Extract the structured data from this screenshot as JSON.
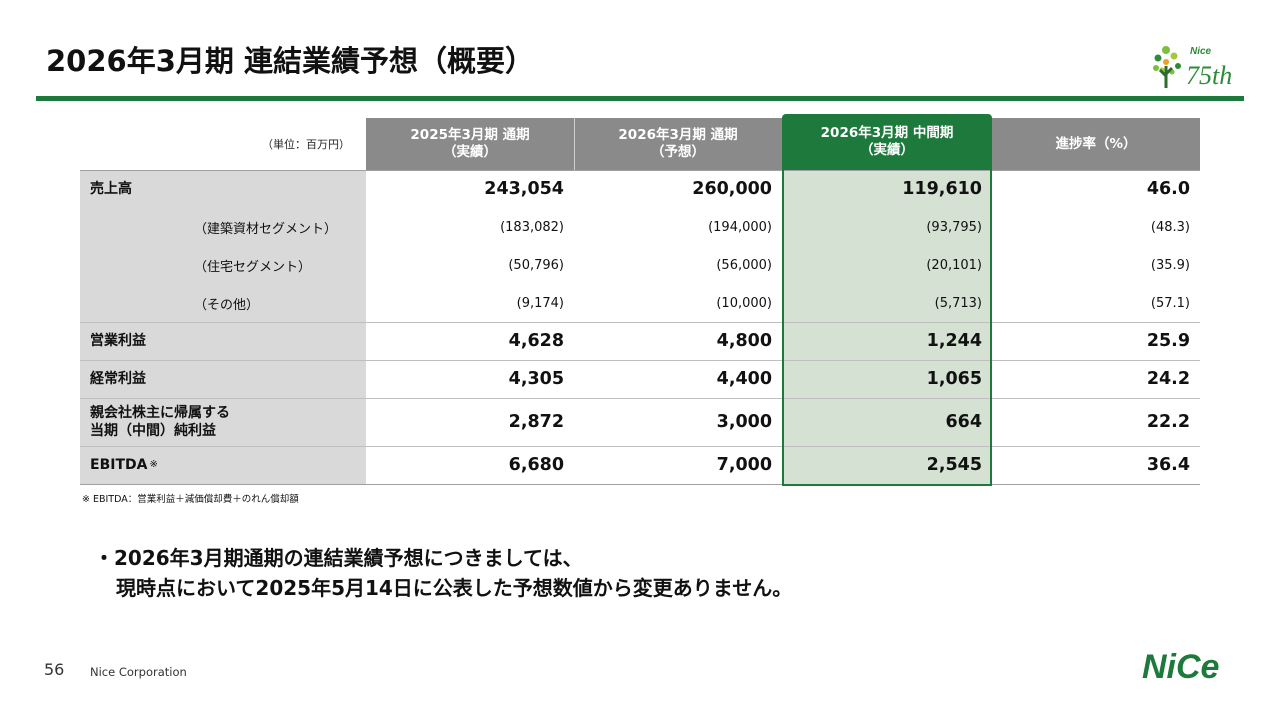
{
  "title": "2026年3月期 連結業績予想（概要）",
  "logo75": {
    "brand": "Nice",
    "anniv": "75th"
  },
  "table": {
    "unit": "（単位：百万円）",
    "headers": [
      {
        "l1": "2025年3月期 通期",
        "l2": "（実績）"
      },
      {
        "l1": "2026年3月期 通期",
        "l2": "（予想）"
      },
      {
        "l1": "2026年3月期 中間期",
        "l2": "（実績）"
      },
      {
        "l1": "進捗率（%）",
        "l2": ""
      }
    ],
    "rows": [
      {
        "label": "売上高",
        "label2": "",
        "v": [
          "243,054",
          "260,000",
          "119,610",
          "46.0"
        ]
      },
      {
        "label": "（建築資材セグメント）",
        "label2": "",
        "v": [
          "(183,082)",
          "(194,000)",
          "(93,795)",
          "(48.3)"
        ]
      },
      {
        "label": "（住宅セグメント）",
        "label2": "",
        "v": [
          "(50,796)",
          "(56,000)",
          "(20,101)",
          "(35.9)"
        ]
      },
      {
        "label": "（その他）",
        "label2": "",
        "v": [
          "(9,174)",
          "(10,000)",
          "(5,713)",
          "(57.1)"
        ]
      },
      {
        "label": "営業利益",
        "label2": "",
        "v": [
          "4,628",
          "4,800",
          "1,244",
          "25.9"
        ]
      },
      {
        "label": "経常利益",
        "label2": "",
        "v": [
          "4,305",
          "4,400",
          "1,065",
          "24.2"
        ]
      },
      {
        "label": "親会社株主に帰属する",
        "label2": "当期（中間）純利益",
        "v": [
          "2,872",
          "3,000",
          "664",
          "22.2"
        ]
      },
      {
        "label": "EBITDA",
        "label2": "※",
        "v": [
          "6,680",
          "7,000",
          "2,545",
          "36.4"
        ]
      }
    ]
  },
  "footnote": "※ EBITDA：営業利益＋減価償却費＋のれん償却額",
  "bullet": {
    "line1": "・2026年3月期通期の連結業績予想につきましては、",
    "line2": "現時点において2025年5月14日に公表した予想数値から変更ありません。"
  },
  "footer": {
    "page": "56",
    "company": "Nice Corporation"
  },
  "nice_logo": "NiCe",
  "colors": {
    "green": "#1d7a3c",
    "header_gray": "#8a8a8a",
    "label_gray": "#d9d9d9",
    "highlight": "#d5e1d3"
  }
}
